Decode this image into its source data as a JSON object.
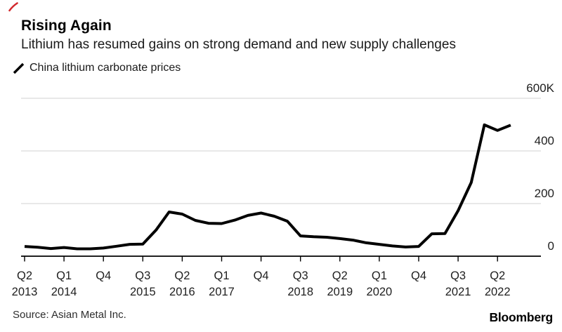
{
  "header": {
    "title": "Rising Again",
    "subtitle": "Lithium has resumed gains on strong demand and new supply challenges"
  },
  "legend": {
    "items": [
      {
        "label": "China lithium carbonate prices",
        "marker": "slash-icon",
        "color": "#000000"
      }
    ]
  },
  "footer": {
    "source": "Source: Asian Metal Inc.",
    "brand": "Bloomberg"
  },
  "colors": {
    "background": "#ffffff",
    "text_primary": "#000000",
    "text_secondary": "#1a1a1a",
    "tick_label": "#1f1f1f",
    "source_text": "#2e2e2e",
    "gridline": "#d9d9d9",
    "axis": "#000000",
    "series_line": "#000000",
    "red_mark": "#d2292d"
  },
  "chart_data": {
    "type": "line",
    "title": "Rising Again",
    "series_name": "China lithium carbonate prices",
    "xlabel": "",
    "ylabel": "",
    "ylim": [
      0,
      600
    ],
    "grid": "horizontal",
    "legend_position": "top-left",
    "y_axis_side": "right",
    "x": [
      "Q2 2013",
      "Q3 2013",
      "Q4 2013",
      "Q1 2014",
      "Q2 2014",
      "Q3 2014",
      "Q4 2014",
      "Q1 2015",
      "Q2 2015",
      "Q3 2015",
      "Q4 2015",
      "Q1 2016",
      "Q2 2016",
      "Q3 2016",
      "Q4 2016",
      "Q1 2017",
      "Q2 2017",
      "Q3 2017",
      "Q4 2017",
      "Q1 2018",
      "Q2 2018",
      "Q3 2018",
      "Q4 2018",
      "Q1 2019",
      "Q2 2019",
      "Q3 2019",
      "Q4 2019",
      "Q1 2020",
      "Q2 2020",
      "Q3 2020",
      "Q4 2020",
      "Q1 2021",
      "Q2 2021",
      "Q3 2021",
      "Q4 2021",
      "Q1 2022",
      "Q2 2022",
      "Q3 2022"
    ],
    "values": [
      37,
      34,
      29,
      33,
      28,
      28,
      31,
      38,
      45,
      46,
      99,
      168,
      160,
      136,
      125,
      124,
      137,
      155,
      164,
      152,
      133,
      77,
      74,
      72,
      67,
      61,
      51,
      45,
      39,
      35,
      37,
      85,
      86,
      173,
      280,
      499,
      478,
      498
    ],
    "y_ticks": [
      {
        "value": 0,
        "label": "0"
      },
      {
        "value": 200,
        "label": "200"
      },
      {
        "value": 400,
        "label": "400"
      },
      {
        "value": 600,
        "label": "600K"
      }
    ],
    "x_ticks": [
      {
        "index": 0,
        "quarter": "Q2",
        "year": "2013"
      },
      {
        "index": 3,
        "quarter": "Q1",
        "year": "2014"
      },
      {
        "index": 6,
        "quarter": "Q4",
        "year": ""
      },
      {
        "index": 9,
        "quarter": "Q3",
        "year": "2015"
      },
      {
        "index": 12,
        "quarter": "Q2",
        "year": "2016"
      },
      {
        "index": 15,
        "quarter": "Q1",
        "year": "2017"
      },
      {
        "index": 18,
        "quarter": "Q4",
        "year": ""
      },
      {
        "index": 21,
        "quarter": "Q3",
        "year": "2018"
      },
      {
        "index": 24,
        "quarter": "Q2",
        "year": "2019"
      },
      {
        "index": 27,
        "quarter": "Q1",
        "year": "2020"
      },
      {
        "index": 30,
        "quarter": "Q4",
        "year": ""
      },
      {
        "index": 33,
        "quarter": "Q3",
        "year": "2021"
      },
      {
        "index": 36,
        "quarter": "Q2",
        "year": "2022"
      }
    ]
  }
}
